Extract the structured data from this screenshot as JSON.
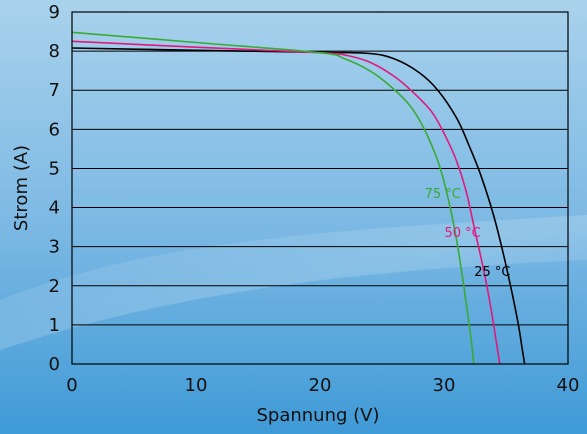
{
  "chart_data": {
    "type": "line",
    "xlabel": "Spannung (V)",
    "ylabel": "Strom (A)",
    "xlim": [
      0,
      40
    ],
    "ylim": [
      0,
      9
    ],
    "x_ticks": [
      0,
      10,
      20,
      30,
      40
    ],
    "y_ticks": [
      0,
      1,
      2,
      3,
      4,
      5,
      6,
      7,
      8,
      9
    ],
    "grid": "horizontal",
    "series": [
      {
        "name": "25 °C",
        "color": "#000000",
        "x": [
          0,
          10,
          20,
          24,
          26,
          28,
          29.5,
          31,
          32,
          33,
          34,
          34.8,
          35.5,
          36,
          36.3,
          36.5
        ],
        "y": [
          8.08,
          8.02,
          7.97,
          7.94,
          7.8,
          7.45,
          7.0,
          6.3,
          5.6,
          4.8,
          3.8,
          2.8,
          1.8,
          1.0,
          0.4,
          0
        ]
      },
      {
        "name": "50 °C",
        "color": "#e0197d",
        "x": [
          0,
          10,
          20,
          22,
          24,
          26,
          27.5,
          29,
          30,
          31,
          31.8,
          32.5,
          33.2,
          33.8,
          34.2,
          34.5
        ],
        "y": [
          8.25,
          8.1,
          7.96,
          7.9,
          7.72,
          7.35,
          6.95,
          6.45,
          5.9,
          5.2,
          4.4,
          3.4,
          2.4,
          1.4,
          0.6,
          0
        ]
      },
      {
        "name": "75 °C",
        "color": "#3aaa35",
        "x": [
          0,
          10,
          20,
          22,
          24,
          25.5,
          27,
          28,
          29,
          29.8,
          30.5,
          31,
          31.5,
          31.9,
          32.2,
          32.4
        ],
        "y": [
          8.48,
          8.22,
          7.96,
          7.8,
          7.5,
          7.15,
          6.7,
          6.25,
          5.6,
          4.9,
          4.0,
          3.2,
          2.2,
          1.3,
          0.6,
          0
        ]
      }
    ],
    "annotations": [
      {
        "text": "25 °C",
        "x": 33.9,
        "y": 2.25,
        "color": "#000000"
      },
      {
        "text": "50 °C",
        "x": 31.5,
        "y": 3.25,
        "color": "#e0197d"
      },
      {
        "text": "75 °C",
        "x": 29.9,
        "y": 4.25,
        "color": "#3aaa35"
      }
    ]
  },
  "colors": {
    "background_top": "#a9d2ec",
    "background_bottom": "#3f9ad6",
    "axis": "#000000",
    "tick_text": "#111111"
  }
}
